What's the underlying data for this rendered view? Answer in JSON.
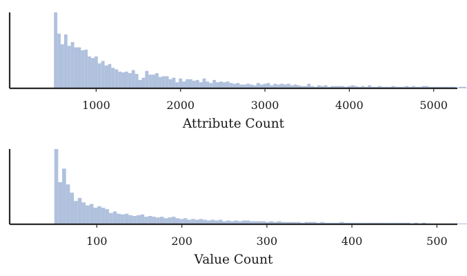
{
  "chart_data": [
    {
      "type": "histogram",
      "title": "",
      "xlabel": "Attribute Count",
      "ylabel": "",
      "xlim": [
        -25,
        5280
      ],
      "bin_start": 500,
      "bin_width": 40,
      "xticks": [
        1000,
        2000,
        3000,
        4000,
        5000
      ],
      "tick_labels": [
        "1000",
        "2000",
        "3000",
        "4000",
        "5000"
      ],
      "ytick_labels_shown": false,
      "grid": false,
      "bar_color": "#b0c1de",
      "counts": [
        1.0,
        0.72,
        0.58,
        0.71,
        0.56,
        0.61,
        0.54,
        0.54,
        0.5,
        0.51,
        0.42,
        0.4,
        0.42,
        0.33,
        0.36,
        0.3,
        0.32,
        0.27,
        0.25,
        0.22,
        0.21,
        0.22,
        0.2,
        0.24,
        0.19,
        0.11,
        0.14,
        0.23,
        0.18,
        0.18,
        0.2,
        0.15,
        0.16,
        0.16,
        0.12,
        0.14,
        0.08,
        0.13,
        0.09,
        0.12,
        0.12,
        0.1,
        0.11,
        0.08,
        0.13,
        0.09,
        0.07,
        0.11,
        0.08,
        0.09,
        0.08,
        0.09,
        0.07,
        0.06,
        0.07,
        0.05,
        0.05,
        0.06,
        0.05,
        0.04,
        0.07,
        0.05,
        0.06,
        0.07,
        0.04,
        0.06,
        0.05,
        0.06,
        0.05,
        0.06,
        0.04,
        0.05,
        0.04,
        0.03,
        0.03,
        0.06,
        0.03,
        0.02,
        0.04,
        0.03,
        0.04,
        0.02,
        0.03,
        0.03,
        0.03,
        0.03,
        0.02,
        0.03,
        0.04,
        0.03,
        0.02,
        0.03,
        0.02,
        0.04,
        0.02,
        0.02,
        0.03,
        0.02,
        0.02,
        0.02,
        0.03,
        0.02,
        0.02,
        0.02,
        0.03,
        0.02,
        0.03,
        0.02,
        0.02,
        0.03,
        0.03,
        0.02,
        0.02,
        0.02,
        0.02,
        0.02,
        0.02,
        0.02,
        0.02,
        0.01,
        0.02,
        0.02,
        0.01,
        0.01,
        0.02,
        0.01,
        0.02,
        0.01,
        0.02,
        0.01,
        0.02,
        0.01,
        0.01,
        0.01,
        0.01,
        0.02,
        0.01,
        0.01,
        0.01,
        0.01,
        0.01,
        0.01,
        0.01,
        0.01,
        0.01,
        0.01,
        0.01,
        0.01,
        0.01,
        0.01,
        0.01,
        0.01
      ]
    },
    {
      "type": "histogram",
      "title": "",
      "xlabel": "Value Count",
      "ylabel": "",
      "xlim": [
        -2.5,
        524
      ],
      "bin_start": 50,
      "bin_width": 4.6,
      "xticks": [
        100,
        200,
        300,
        400,
        500
      ],
      "tick_labels": [
        "100",
        "200",
        "300",
        "400",
        "500"
      ],
      "ytick_labels_shown": false,
      "grid": false,
      "bar_color": "#b0c1de",
      "counts": [
        1.0,
        0.56,
        0.74,
        0.53,
        0.42,
        0.31,
        0.35,
        0.29,
        0.25,
        0.27,
        0.22,
        0.24,
        0.22,
        0.2,
        0.15,
        0.17,
        0.14,
        0.13,
        0.14,
        0.12,
        0.11,
        0.12,
        0.13,
        0.1,
        0.11,
        0.1,
        0.09,
        0.1,
        0.08,
        0.09,
        0.1,
        0.08,
        0.07,
        0.08,
        0.06,
        0.07,
        0.06,
        0.07,
        0.06,
        0.05,
        0.06,
        0.05,
        0.06,
        0.04,
        0.05,
        0.04,
        0.05,
        0.04,
        0.05,
        0.05,
        0.04,
        0.04,
        0.04,
        0.04,
        0.03,
        0.04,
        0.03,
        0.04,
        0.03,
        0.03,
        0.03,
        0.03,
        0.03,
        0.02,
        0.03,
        0.03,
        0.03,
        0.02,
        0.03,
        0.02,
        0.02,
        0.02,
        0.02,
        0.03,
        0.02,
        0.02,
        0.02,
        0.02,
        0.02,
        0.02,
        0.02,
        0.02,
        0.02,
        0.02,
        0.02,
        0.02,
        0.02,
        0.02,
        0.02,
        0.02,
        0.02,
        0.01,
        0.02,
        0.01,
        0.02,
        0.01,
        0.01,
        0.01,
        0.01,
        0.01,
        0.01,
        0.01,
        0.01,
        0.01,
        0.01,
        0.01,
        0.01,
        0.01,
        0.01,
        0.01
      ]
    }
  ]
}
